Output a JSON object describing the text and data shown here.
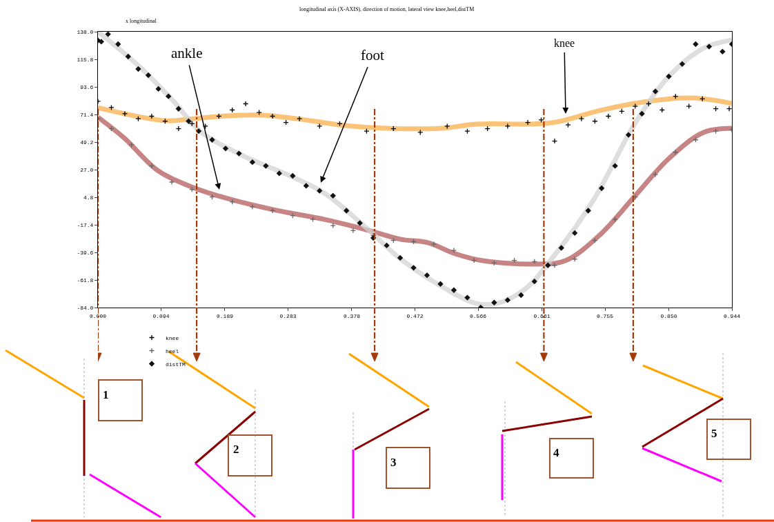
{
  "chart_data": {
    "type": "scatter",
    "title": "longitudinal axis (X-AXIS), direction of motion, lateral view knee,heel,distTM",
    "ylabel": "x longitudinal",
    "xlim": [
      0,
      0.944
    ],
    "ylim": [
      -84,
      138
    ],
    "xticks": [
      {
        "value": 0,
        "label": "0.000"
      },
      0.094,
      0.189,
      0.283,
      0.378,
      0.472,
      0.566,
      0.661,
      0.755,
      {
        "value": 0.85,
        "label": "0.850"
      },
      0.944
    ],
    "yticks": [
      {
        "value": 138,
        "label": "138.0"
      },
      115.8,
      93.6,
      71.4,
      49.2,
      {
        "value": 27,
        "label": "27.0"
      },
      4.8,
      -17.4,
      -39.6,
      -61.8,
      {
        "value": -84,
        "label": "-84.0"
      }
    ],
    "legend": "bottom left",
    "series": [
      {
        "type": "line",
        "color": "#f9b04a",
        "marker": "none",
        "x": [
          0,
          0.101,
          0.142,
          0.193,
          0.245,
          0.296,
          0.368,
          0.429,
          0.512,
          0.563,
          0.676,
          0.74,
          0.799,
          0.881,
          0.944
        ],
        "values": [
          76.9,
          66.4,
          68,
          70.3,
          70.8,
          68,
          62.5,
          60.3,
          60.3,
          63.6,
          64.7,
          73.6,
          80.3,
          84.7,
          80.3
        ]
      },
      {
        "type": "line",
        "color": "#b35c5c",
        "marker": "none",
        "x": [
          0,
          0.039,
          0.09,
          0.142,
          0.193,
          0.265,
          0.337,
          0.399,
          0.45,
          0.491,
          0.532,
          0.573,
          0.655,
          0.696,
          0.748,
          0.799,
          0.85,
          0.902,
          0.944
        ],
        "values": [
          69.2,
          52.5,
          25.9,
          12.6,
          3.7,
          -5.7,
          -13,
          -21.3,
          -29,
          -31.8,
          -40.7,
          -46.3,
          -49,
          -46.3,
          -25.2,
          5.4,
          35.9,
          57,
          60.3
        ]
      },
      {
        "type": "line",
        "color": "#d3d3d3",
        "marker": "none",
        "x": [
          0,
          0.06,
          0.111,
          0.152,
          0.214,
          0.286,
          0.337,
          0.399,
          0.45,
          0.511,
          0.563,
          0.594,
          0.635,
          0.676,
          0.738,
          0.799,
          0.851,
          0.902,
          0.944
        ],
        "values": [
          138,
          110.8,
          83,
          58,
          38.7,
          22,
          8.1,
          -19.6,
          -44.6,
          -66.8,
          -80.7,
          -80.7,
          -69.6,
          -44.6,
          2.6,
          63.6,
          102.5,
          124.7,
          131.3
        ]
      },
      {
        "name": "knee",
        "color": "#000000",
        "marker": "cross",
        "x": [
          0,
          0.02,
          0.04,
          0.06,
          0.08,
          0.1,
          0.12,
          0.14,
          0.16,
          0.18,
          0.2,
          0.22,
          0.24,
          0.26,
          0.28,
          0.3,
          0.33,
          0.36,
          0.4,
          0.44,
          0.48,
          0.52,
          0.55,
          0.58,
          0.61,
          0.64,
          0.66,
          0.68,
          0.7,
          0.72,
          0.74,
          0.76,
          0.78,
          0.8,
          0.82,
          0.84,
          0.86,
          0.88,
          0.9,
          0.92,
          0.94
        ],
        "values": [
          82,
          77,
          72,
          68,
          70,
          66,
          60,
          64,
          62,
          70,
          75,
          80,
          73,
          70,
          65,
          68,
          62,
          64,
          58,
          60,
          57,
          62,
          58,
          60,
          62,
          65,
          67,
          50,
          63,
          68,
          66,
          70,
          74,
          78,
          80,
          75,
          86,
          78,
          84,
          76,
          76
        ]
      },
      {
        "name": "heel",
        "color": "#666666",
        "marker": "cross",
        "x": [
          0,
          0.02,
          0.05,
          0.08,
          0.11,
          0.14,
          0.17,
          0.2,
          0.23,
          0.26,
          0.29,
          0.32,
          0.35,
          0.38,
          0.41,
          0.44,
          0.47,
          0.5,
          0.53,
          0.56,
          0.59,
          0.62,
          0.65,
          0.68,
          0.71,
          0.74,
          0.77,
          0.8,
          0.83,
          0.86,
          0.89,
          0.92,
          0.944
        ],
        "values": [
          68,
          60,
          47,
          30,
          17,
          11,
          5,
          1,
          -3,
          -6,
          -10,
          -13,
          -18,
          -22,
          -26,
          -30,
          -31,
          -33,
          -38,
          -46,
          -48,
          -46,
          -47,
          -50,
          -45,
          -30,
          -13,
          5,
          23,
          41,
          51,
          58,
          59
        ]
      },
      {
        "name": "distTM",
        "color": "#111111",
        "marker": "diamond",
        "x": [
          0,
          0.005,
          0.015,
          0.03,
          0.045,
          0.06,
          0.075,
          0.09,
          0.105,
          0.12,
          0.135,
          0.15,
          0.17,
          0.19,
          0.21,
          0.23,
          0.25,
          0.27,
          0.29,
          0.31,
          0.33,
          0.35,
          0.37,
          0.39,
          0.41,
          0.43,
          0.45,
          0.47,
          0.49,
          0.51,
          0.53,
          0.55,
          0.57,
          0.59,
          0.61,
          0.63,
          0.65,
          0.67,
          0.69,
          0.71,
          0.73,
          0.75,
          0.77,
          0.79,
          0.81,
          0.83,
          0.85,
          0.87,
          0.89,
          0.91,
          0.93,
          0.944
        ],
        "values": [
          131,
          130,
          136,
          128,
          118,
          108,
          103,
          92,
          86,
          76,
          66,
          58,
          51,
          44,
          40,
          33,
          30,
          24,
          22,
          14,
          10,
          6,
          -6,
          -16,
          -28,
          -34,
          -44,
          -52,
          -58,
          -65,
          -70,
          -76,
          -84,
          -80,
          -78,
          -74,
          -63,
          -50,
          -36,
          -24,
          -6,
          12,
          30,
          55,
          72,
          90,
          102,
          112,
          128,
          126,
          122,
          128
        ]
      }
    ],
    "annotations": [
      "ankle",
      "foot",
      "knee",
      "1",
      "2",
      "3",
      "4",
      "5"
    ],
    "ref_lines": [
      {
        "axis": "x",
        "value": 0,
        "color": "#a33a0c",
        "line_style": "dashdot"
      },
      {
        "axis": "x",
        "value": 0.147,
        "color": "#a33a0c",
        "line_style": "dashdot"
      },
      {
        "axis": "x",
        "value": 0.412,
        "color": "#a33a0c",
        "line_style": "dashdot"
      },
      {
        "axis": "x",
        "value": 0.664,
        "color": "#a33a0c",
        "line_style": "dashdot"
      },
      {
        "axis": "x",
        "value": 0.797,
        "color": "#a33a0c",
        "line_style": "dashdot"
      }
    ]
  }
}
